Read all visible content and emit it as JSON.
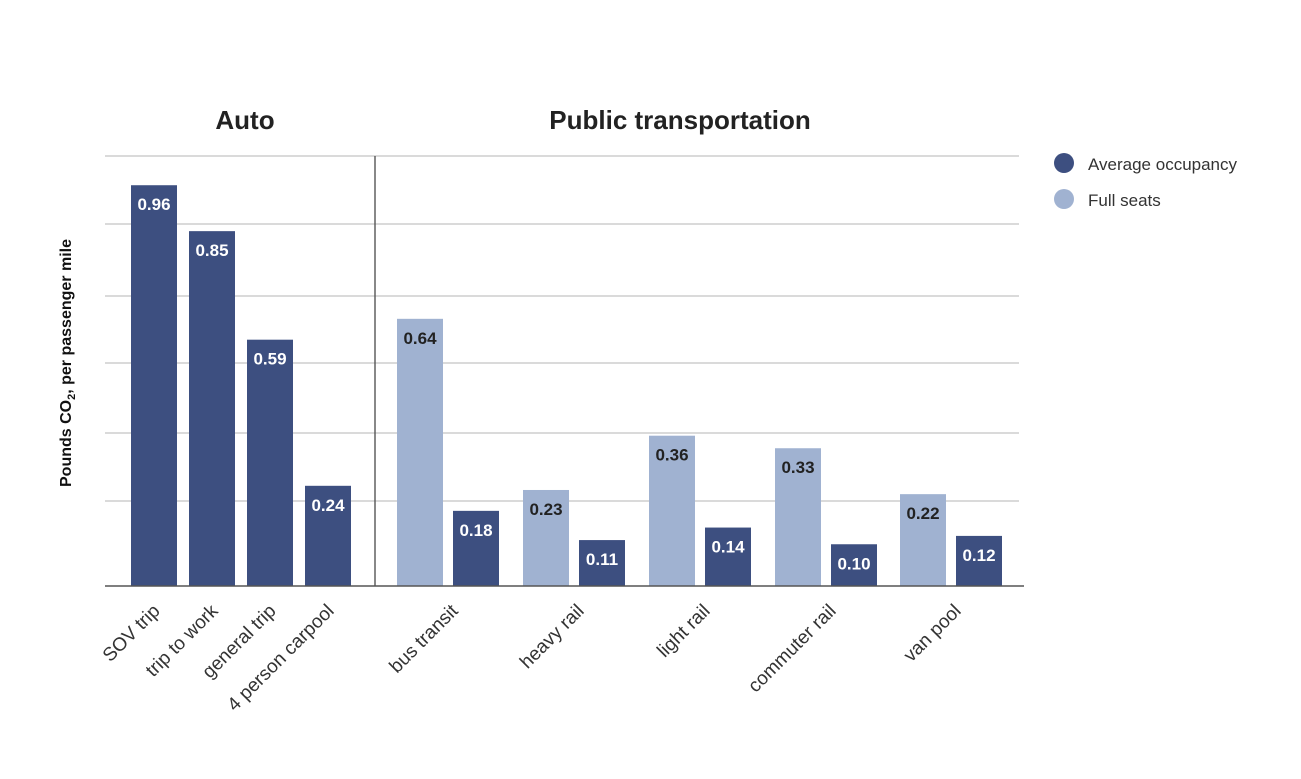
{
  "chart_data": {
    "type": "bar",
    "ylabel": "Pounds CO2, per passenger mile",
    "ylabel_parts": {
      "before": "Pounds CO",
      "sub": "2",
      "after": ", per passenger mile"
    },
    "groups": [
      {
        "title": "Auto",
        "categories": [
          "SOV trip",
          "trip to work",
          "general trip",
          "4 person carpool"
        ]
      },
      {
        "title": "Public transportation",
        "categories": [
          "bus transit",
          "heavy rail",
          "light rail",
          "commuter rail",
          "van pool"
        ]
      }
    ],
    "series": [
      {
        "name": "Average occupancy",
        "color": "#3d4f80",
        "text_color": "#ffffff"
      },
      {
        "name": "Full seats",
        "color": "#a0b2d1",
        "text_color": "#222222"
      }
    ],
    "bars": [
      {
        "category": "SOV trip",
        "series": "Average occupancy",
        "value": 0.96,
        "label": "0.96"
      },
      {
        "category": "trip to work",
        "series": "Average occupancy",
        "value": 0.85,
        "label": "0.85"
      },
      {
        "category": "general trip",
        "series": "Average occupancy",
        "value": 0.59,
        "label": "0.59"
      },
      {
        "category": "4 person carpool",
        "series": "Average occupancy",
        "value": 0.24,
        "label": "0.24"
      },
      {
        "category": "bus transit",
        "series": "Full seats",
        "value": 0.64,
        "label": "0.64"
      },
      {
        "category": "bus transit",
        "series": "Average occupancy",
        "value": 0.18,
        "label": "0.18"
      },
      {
        "category": "heavy rail",
        "series": "Full seats",
        "value": 0.23,
        "label": "0.23"
      },
      {
        "category": "heavy rail",
        "series": "Average occupancy",
        "value": 0.11,
        "label": "0.11"
      },
      {
        "category": "light rail",
        "series": "Full seats",
        "value": 0.36,
        "label": "0.36"
      },
      {
        "category": "light rail",
        "series": "Average occupancy",
        "value": 0.14,
        "label": "0.14"
      },
      {
        "category": "commuter rail",
        "series": "Full seats",
        "value": 0.33,
        "label": "0.33"
      },
      {
        "category": "commuter rail",
        "series": "Average occupancy",
        "value": 0.1,
        "label": "0.10"
      },
      {
        "category": "van pool",
        "series": "Full seats",
        "value": 0.22,
        "label": "0.22"
      },
      {
        "category": "van pool",
        "series": "Average occupancy",
        "value": 0.12,
        "label": "0.12"
      }
    ],
    "ylim": [
      0,
      1.03
    ],
    "grid": true,
    "legend_position": "top-right"
  }
}
